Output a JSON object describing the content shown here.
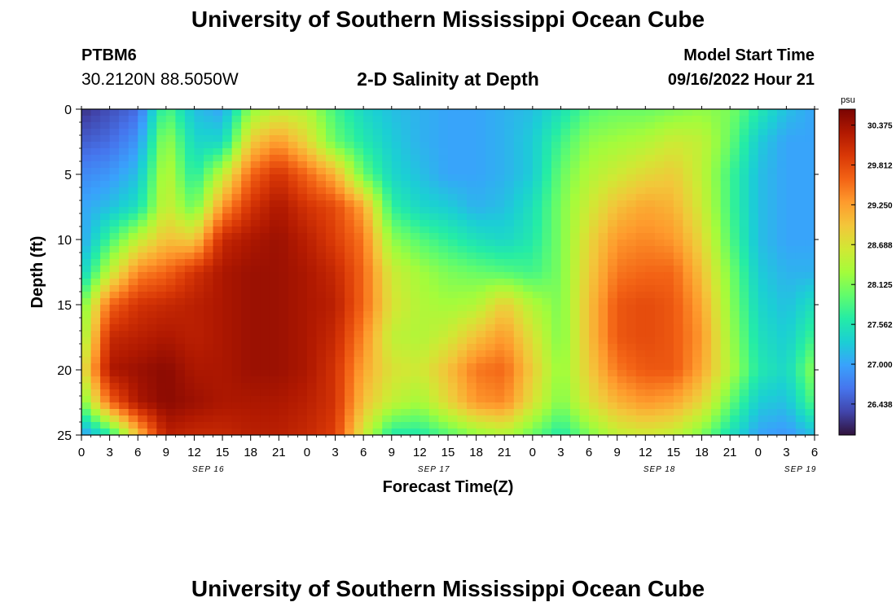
{
  "header": {
    "title": "University of Southern Mississippi Ocean Cube",
    "station_id": "PTBM6",
    "coordinates": "30.2120N  88.5050W",
    "subtitle": "2-D Salinity at Depth",
    "model_start_label": "Model Start Time",
    "model_start_value": "09/16/2022 Hour 21"
  },
  "footer": {
    "title": "University of Southern Mississippi Ocean Cube"
  },
  "chart_data": {
    "type": "heatmap",
    "title": "2-D Salinity at Depth",
    "xlabel": "Forecast Time(Z)",
    "ylabel": "Depth (ft)",
    "x_tick_labels": [
      "0",
      "3",
      "6",
      "9",
      "12",
      "15",
      "18",
      "21",
      "0",
      "3",
      "6",
      "9",
      "12",
      "15",
      "18",
      "21",
      "0",
      "3",
      "6",
      "9",
      "12",
      "15",
      "18",
      "21",
      "0",
      "3",
      "6"
    ],
    "date_labels": [
      {
        "label": "SEP 16",
        "hour_index": 4.5
      },
      {
        "label": "SEP 17",
        "hour_index": 12.5
      },
      {
        "label": "SEP 18",
        "hour_index": 20.5
      },
      {
        "label": "SEP 19",
        "hour_index": 25.5
      }
    ],
    "y_ticks": [
      0,
      5,
      10,
      15,
      20,
      25
    ],
    "ylim": [
      0,
      25
    ],
    "xlim_hours": [
      0,
      78
    ],
    "colorbar": {
      "unit": "psu",
      "ticks": [
        "30.375",
        "29.812",
        "29.250",
        "28.688",
        "28.125",
        "27.562",
        "27.000",
        "26.438"
      ],
      "min": 26.0,
      "max": 30.6
    },
    "colormap": [
      "#30123b",
      "#4145ab",
      "#4675ed",
      "#39a2fc",
      "#1bcfd4",
      "#24eca6",
      "#61fc6c",
      "#a4fc3b",
      "#d1e834",
      "#f3c63a",
      "#fe9b2d",
      "#f36315",
      "#d93806",
      "#b11901",
      "#7a0403"
    ],
    "grid": {
      "hours": [
        0,
        3,
        6,
        9,
        12,
        15,
        18,
        21,
        24,
        27,
        30,
        33,
        36,
        39,
        42,
        45,
        48,
        51,
        54,
        57,
        60,
        63,
        66,
        69,
        72,
        75,
        78
      ],
      "depths_ft": [
        0,
        2.5,
        5,
        7.5,
        10,
        12.5,
        15,
        17.5,
        20,
        22.5,
        25
      ],
      "salinity_psu": [
        [
          26.2,
          26.4,
          26.6,
          27.9,
          27.2,
          27.0,
          28.2,
          28.5,
          28.4,
          27.8,
          27.4,
          27.2,
          27.1,
          27.0,
          27.0,
          27.1,
          27.2,
          27.5,
          27.9,
          28.0,
          28.0,
          28.1,
          28.2,
          28.1,
          27.6,
          27.2,
          27.0
        ],
        [
          26.5,
          26.6,
          26.9,
          28.3,
          27.4,
          27.4,
          28.9,
          29.3,
          28.8,
          28.0,
          27.6,
          27.3,
          27.1,
          27.0,
          27.0,
          27.1,
          27.3,
          27.8,
          28.2,
          28.3,
          28.4,
          28.6,
          28.5,
          28.0,
          27.3,
          27.0,
          27.0
        ],
        [
          26.8,
          26.9,
          27.2,
          28.5,
          27.6,
          28.5,
          29.6,
          30.0,
          29.6,
          29.1,
          28.0,
          27.4,
          27.2,
          27.0,
          27.0,
          27.1,
          27.3,
          28.0,
          28.4,
          28.6,
          28.8,
          28.9,
          28.5,
          27.8,
          27.2,
          27.0,
          27.0
        ],
        [
          27.0,
          27.2,
          27.5,
          28.6,
          28.0,
          29.3,
          30.0,
          30.3,
          30.0,
          29.8,
          29.2,
          27.7,
          27.4,
          27.3,
          27.1,
          27.2,
          27.5,
          28.1,
          28.6,
          29.0,
          29.2,
          29.1,
          28.6,
          27.8,
          27.2,
          27.0,
          27.0
        ],
        [
          27.0,
          27.8,
          28.5,
          29.0,
          28.9,
          30.1,
          30.3,
          30.4,
          30.2,
          29.9,
          29.5,
          28.2,
          27.9,
          27.7,
          27.5,
          27.4,
          27.6,
          28.1,
          28.8,
          29.3,
          29.4,
          29.3,
          28.8,
          27.9,
          27.2,
          27.0,
          27.0
        ],
        [
          27.3,
          28.5,
          29.4,
          29.6,
          30.0,
          30.3,
          30.4,
          30.4,
          30.3,
          30.1,
          29.6,
          28.6,
          28.3,
          28.1,
          28.0,
          27.9,
          27.8,
          28.1,
          28.9,
          29.5,
          29.6,
          29.6,
          29.0,
          28.1,
          27.3,
          27.1,
          27.1
        ],
        [
          28.0,
          29.6,
          30.0,
          30.1,
          30.2,
          30.3,
          30.4,
          30.4,
          30.3,
          30.2,
          29.6,
          28.7,
          28.4,
          28.3,
          28.4,
          28.9,
          28.4,
          28.1,
          29.0,
          29.7,
          29.8,
          29.7,
          29.2,
          28.2,
          27.4,
          27.2,
          27.5
        ],
        [
          28.2,
          30.1,
          30.2,
          30.3,
          30.2,
          30.3,
          30.4,
          30.4,
          30.3,
          30.1,
          29.4,
          28.5,
          28.4,
          28.6,
          29.0,
          29.3,
          28.7,
          28.1,
          29.0,
          29.7,
          29.8,
          29.7,
          29.3,
          28.3,
          27.5,
          27.3,
          27.8
        ],
        [
          28.6,
          30.3,
          30.4,
          30.5,
          30.3,
          30.3,
          30.4,
          30.4,
          30.3,
          30.0,
          29.2,
          28.7,
          28.6,
          29.0,
          29.5,
          29.6,
          28.9,
          28.2,
          28.9,
          29.5,
          29.7,
          29.7,
          29.2,
          28.4,
          27.6,
          27.4,
          28.2
        ],
        [
          28.0,
          29.6,
          30.3,
          30.5,
          30.4,
          30.3,
          30.3,
          30.3,
          30.2,
          30.0,
          29.0,
          28.5,
          28.3,
          28.8,
          29.3,
          29.4,
          28.7,
          28.1,
          28.7,
          29.1,
          29.3,
          29.2,
          28.8,
          28.0,
          27.3,
          27.2,
          27.9
        ],
        [
          26.9,
          27.6,
          29.0,
          30.2,
          30.1,
          30.1,
          30.2,
          30.2,
          30.1,
          29.9,
          28.6,
          27.6,
          27.6,
          27.9,
          28.2,
          28.4,
          28.0,
          27.6,
          28.1,
          28.5,
          28.6,
          28.5,
          28.1,
          27.5,
          27.0,
          26.9,
          27.2
        ]
      ]
    }
  }
}
